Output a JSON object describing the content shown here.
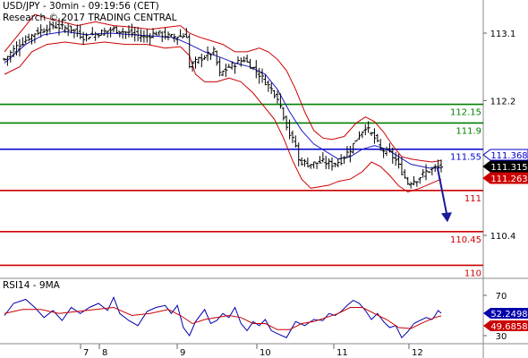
{
  "header": {
    "symbol_line": "USD/JPY - 30min - 09:19:56 (CET)",
    "copyright_line": "Research © 2017 TRADING CENTRAL"
  },
  "rsi_panel": {
    "title": "RSI14 - 9MA"
  },
  "colors": {
    "price_bars": "#000000",
    "bollinger": "#cc0000",
    "moving_average": "#1a1acc",
    "resistance": "#008000",
    "pivot": "#0000cc",
    "support": "#cc0000",
    "rsi_line": "#0000aa",
    "rsi_ma": "#cc0000",
    "forecast_arrow": "#1a1a99"
  },
  "chart_data": [
    {
      "type": "candlestick",
      "title": "USD/JPY - 30min",
      "x_tick_labels": [
        "7",
        "8",
        "9",
        "10",
        "11",
        "12"
      ],
      "y_tick_labels": [
        "113.1",
        "112.2",
        "110.4"
      ],
      "ylim": [
        109.85,
        113.55
      ],
      "price_path": [
        [
          0,
          112.75
        ],
        [
          4,
          112.92
        ],
        [
          10,
          113.1
        ],
        [
          16,
          113.2
        ],
        [
          22,
          113.15
        ],
        [
          26,
          113.05
        ],
        [
          31,
          113.1
        ],
        [
          36,
          113.15
        ],
        [
          41,
          113.1
        ],
        [
          46,
          113.05
        ],
        [
          50,
          113.1
        ],
        [
          55,
          113.05
        ],
        [
          60,
          113.07
        ],
        [
          61,
          112.65
        ],
        [
          64,
          112.75
        ],
        [
          69,
          112.85
        ],
        [
          71,
          112.55
        ],
        [
          74,
          112.65
        ],
        [
          79,
          112.75
        ],
        [
          84,
          112.55
        ],
        [
          88,
          112.35
        ],
        [
          90,
          112.25
        ],
        [
          92,
          112.0
        ],
        [
          94,
          111.75
        ],
        [
          96,
          111.6
        ],
        [
          97,
          111.4
        ],
        [
          100,
          111.35
        ],
        [
          105,
          111.38
        ],
        [
          108,
          111.35
        ],
        [
          111,
          111.4
        ],
        [
          114,
          111.55
        ],
        [
          117,
          111.75
        ],
        [
          119,
          111.85
        ],
        [
          122,
          111.7
        ],
        [
          124,
          111.55
        ],
        [
          127,
          111.5
        ],
        [
          129,
          111.4
        ],
        [
          131,
          111.25
        ],
        [
          133,
          111.1
        ],
        [
          136,
          111.15
        ],
        [
          139,
          111.25
        ],
        [
          142,
          111.3
        ],
        [
          144,
          111.32
        ]
      ],
      "bollinger_band_center": [
        [
          0,
          112.7
        ],
        [
          7,
          112.95
        ],
        [
          13,
          113.08
        ],
        [
          20,
          113.12
        ],
        [
          27,
          113.08
        ],
        [
          35,
          113.1
        ],
        [
          42,
          113.08
        ],
        [
          49,
          113.06
        ],
        [
          56,
          113.04
        ],
        [
          61,
          112.95
        ],
        [
          66,
          112.85
        ],
        [
          71,
          112.78
        ],
        [
          76,
          112.7
        ],
        [
          81,
          112.65
        ],
        [
          86,
          112.55
        ],
        [
          90,
          112.35
        ],
        [
          94,
          112.05
        ],
        [
          98,
          111.8
        ],
        [
          102,
          111.62
        ],
        [
          106,
          111.52
        ],
        [
          110,
          111.42
        ],
        [
          114,
          111.45
        ],
        [
          118,
          111.55
        ],
        [
          122,
          111.6
        ],
        [
          126,
          111.55
        ],
        [
          130,
          111.45
        ],
        [
          134,
          111.35
        ],
        [
          140,
          111.3
        ],
        [
          144,
          111.3
        ]
      ],
      "bollinger_upper": [
        [
          0,
          112.85
        ],
        [
          6,
          113.15
        ],
        [
          10,
          113.35
        ],
        [
          14,
          113.3
        ],
        [
          19,
          113.25
        ],
        [
          24,
          113.2
        ],
        [
          30,
          113.25
        ],
        [
          36,
          113.2
        ],
        [
          42,
          113.18
        ],
        [
          48,
          113.15
        ],
        [
          54,
          113.18
        ],
        [
          58,
          113.2
        ],
        [
          61,
          113.1
        ],
        [
          64,
          113.05
        ],
        [
          68,
          113.0
        ],
        [
          72,
          112.95
        ],
        [
          76,
          112.85
        ],
        [
          80,
          112.85
        ],
        [
          84,
          112.9
        ],
        [
          87,
          112.85
        ],
        [
          90,
          112.75
        ],
        [
          93,
          112.6
        ],
        [
          96,
          112.35
        ],
        [
          99,
          112.05
        ],
        [
          102,
          111.8
        ],
        [
          105,
          111.7
        ],
        [
          108,
          111.68
        ],
        [
          112,
          111.72
        ],
        [
          116,
          111.9
        ],
        [
          119,
          111.98
        ],
        [
          122,
          111.92
        ],
        [
          125,
          111.78
        ],
        [
          128,
          111.6
        ],
        [
          131,
          111.45
        ],
        [
          134,
          111.42
        ],
        [
          137,
          111.4
        ],
        [
          141,
          111.38
        ],
        [
          144,
          111.4
        ]
      ],
      "bollinger_lower": [
        [
          0,
          112.55
        ],
        [
          5,
          112.65
        ],
        [
          9,
          112.85
        ],
        [
          14,
          112.95
        ],
        [
          20,
          112.98
        ],
        [
          26,
          112.95
        ],
        [
          33,
          112.98
        ],
        [
          40,
          112.95
        ],
        [
          47,
          112.95
        ],
        [
          53,
          112.9
        ],
        [
          58,
          112.92
        ],
        [
          61,
          112.8
        ],
        [
          63,
          112.55
        ],
        [
          66,
          112.45
        ],
        [
          70,
          112.45
        ],
        [
          74,
          112.5
        ],
        [
          78,
          112.45
        ],
        [
          82,
          112.3
        ],
        [
          86,
          112.1
        ],
        [
          89,
          111.95
        ],
        [
          92,
          111.7
        ],
        [
          95,
          111.4
        ],
        [
          98,
          111.15
        ],
        [
          101,
          111.03
        ],
        [
          104,
          111.05
        ],
        [
          107,
          111.07
        ],
        [
          110,
          111.12
        ],
        [
          114,
          111.15
        ],
        [
          118,
          111.25
        ],
        [
          121,
          111.38
        ],
        [
          124,
          111.32
        ],
        [
          127,
          111.2
        ],
        [
          130,
          111.06
        ],
        [
          133,
          110.98
        ],
        [
          137,
          111.03
        ],
        [
          141,
          111.1
        ],
        [
          144,
          111.15
        ]
      ],
      "levels": [
        {
          "value": 112.15,
          "label": "112.15",
          "kind": "resistance"
        },
        {
          "value": 111.9,
          "label": "111.9",
          "kind": "resistance"
        },
        {
          "value": 111.55,
          "label": "111.55",
          "kind": "pivot"
        },
        {
          "value": 111,
          "label": "111",
          "kind": "support"
        },
        {
          "value": 110.45,
          "label": "110.45",
          "kind": "support"
        },
        {
          "value": 110,
          "label": "110",
          "kind": "support"
        }
      ],
      "price_markers": [
        {
          "label": "111.368",
          "value": 111.368,
          "style": "blue-box"
        },
        {
          "label": "111.315",
          "value": 111.315,
          "style": "black-box"
        },
        {
          "label": "111.263",
          "value": 111.263,
          "style": "red-box"
        }
      ],
      "forecast_arrow": {
        "from_value": 111.32,
        "to_value": 110.6,
        "direction": "down"
      },
      "grid": false
    },
    {
      "type": "line",
      "title": "RSI14 - 9MA",
      "ylim": [
        23,
        80
      ],
      "y_tick_labels": [
        "70",
        "30"
      ],
      "series": [
        {
          "name": "RSI14",
          "points": [
            [
              0,
              50
            ],
            [
              3,
              62
            ],
            [
              7,
              66
            ],
            [
              10,
              58
            ],
            [
              13,
              48
            ],
            [
              16,
              55
            ],
            [
              19,
              45
            ],
            [
              22,
              58
            ],
            [
              25,
              52
            ],
            [
              28,
              58
            ],
            [
              31,
              62
            ],
            [
              34,
              55
            ],
            [
              36,
              68
            ],
            [
              38,
              52
            ],
            [
              41,
              45
            ],
            [
              44,
              40
            ],
            [
              47,
              54
            ],
            [
              50,
              58
            ],
            [
              53,
              60
            ],
            [
              55,
              52
            ],
            [
              57,
              60
            ],
            [
              59,
              38
            ],
            [
              61,
              30
            ],
            [
              63,
              44
            ],
            [
              66,
              56
            ],
            [
              68,
              42
            ],
            [
              70,
              45
            ],
            [
              72,
              52
            ],
            [
              74,
              48
            ],
            [
              76,
              58
            ],
            [
              78,
              42
            ],
            [
              80,
              35
            ],
            [
              82,
              44
            ],
            [
              84,
              40
            ],
            [
              86,
              46
            ],
            [
              88,
              35
            ],
            [
              90,
              32
            ],
            [
              93,
              28
            ],
            [
              96,
              44
            ],
            [
              99,
              40
            ],
            [
              102,
              46
            ],
            [
              105,
              45
            ],
            [
              107,
              52
            ],
            [
              109,
              50
            ],
            [
              111,
              54
            ],
            [
              113,
              60
            ],
            [
              115,
              65
            ],
            [
              117,
              62
            ],
            [
              119,
              55
            ],
            [
              121,
              46
            ],
            [
              123,
              52
            ],
            [
              125,
              44
            ],
            [
              127,
              38
            ],
            [
              129,
              40
            ],
            [
              131,
              28
            ],
            [
              133,
              34
            ],
            [
              135,
              42
            ],
            [
              137,
              45
            ],
            [
              139,
              48
            ],
            [
              141,
              46
            ],
            [
              142,
              50
            ],
            [
              143,
              55
            ],
            [
              144,
              52.2498
            ]
          ]
        },
        {
          "name": "9MA",
          "points": [
            [
              0,
              52
            ],
            [
              6,
              56
            ],
            [
              12,
              56
            ],
            [
              18,
              52
            ],
            [
              24,
              54
            ],
            [
              30,
              56
            ],
            [
              36,
              58
            ],
            [
              42,
              50
            ],
            [
              48,
              52
            ],
            [
              54,
              56
            ],
            [
              58,
              50
            ],
            [
              62,
              42
            ],
            [
              66,
              46
            ],
            [
              70,
              48
            ],
            [
              74,
              50
            ],
            [
              78,
              48
            ],
            [
              82,
              42
            ],
            [
              86,
              42
            ],
            [
              90,
              36
            ],
            [
              94,
              36
            ],
            [
              98,
              42
            ],
            [
              102,
              44
            ],
            [
              106,
              48
            ],
            [
              110,
              52
            ],
            [
              114,
              58
            ],
            [
              118,
              58
            ],
            [
              122,
              52
            ],
            [
              126,
              46
            ],
            [
              130,
              38
            ],
            [
              134,
              37
            ],
            [
              138,
              43
            ],
            [
              142,
              48
            ],
            [
              144,
              49.6858
            ]
          ]
        }
      ],
      "value_markers": [
        {
          "label": "52.2498",
          "value": 52.2498,
          "series": "RSI14"
        },
        {
          "label": "49.6858",
          "value": 49.6858,
          "series": "9MA"
        }
      ]
    }
  ]
}
